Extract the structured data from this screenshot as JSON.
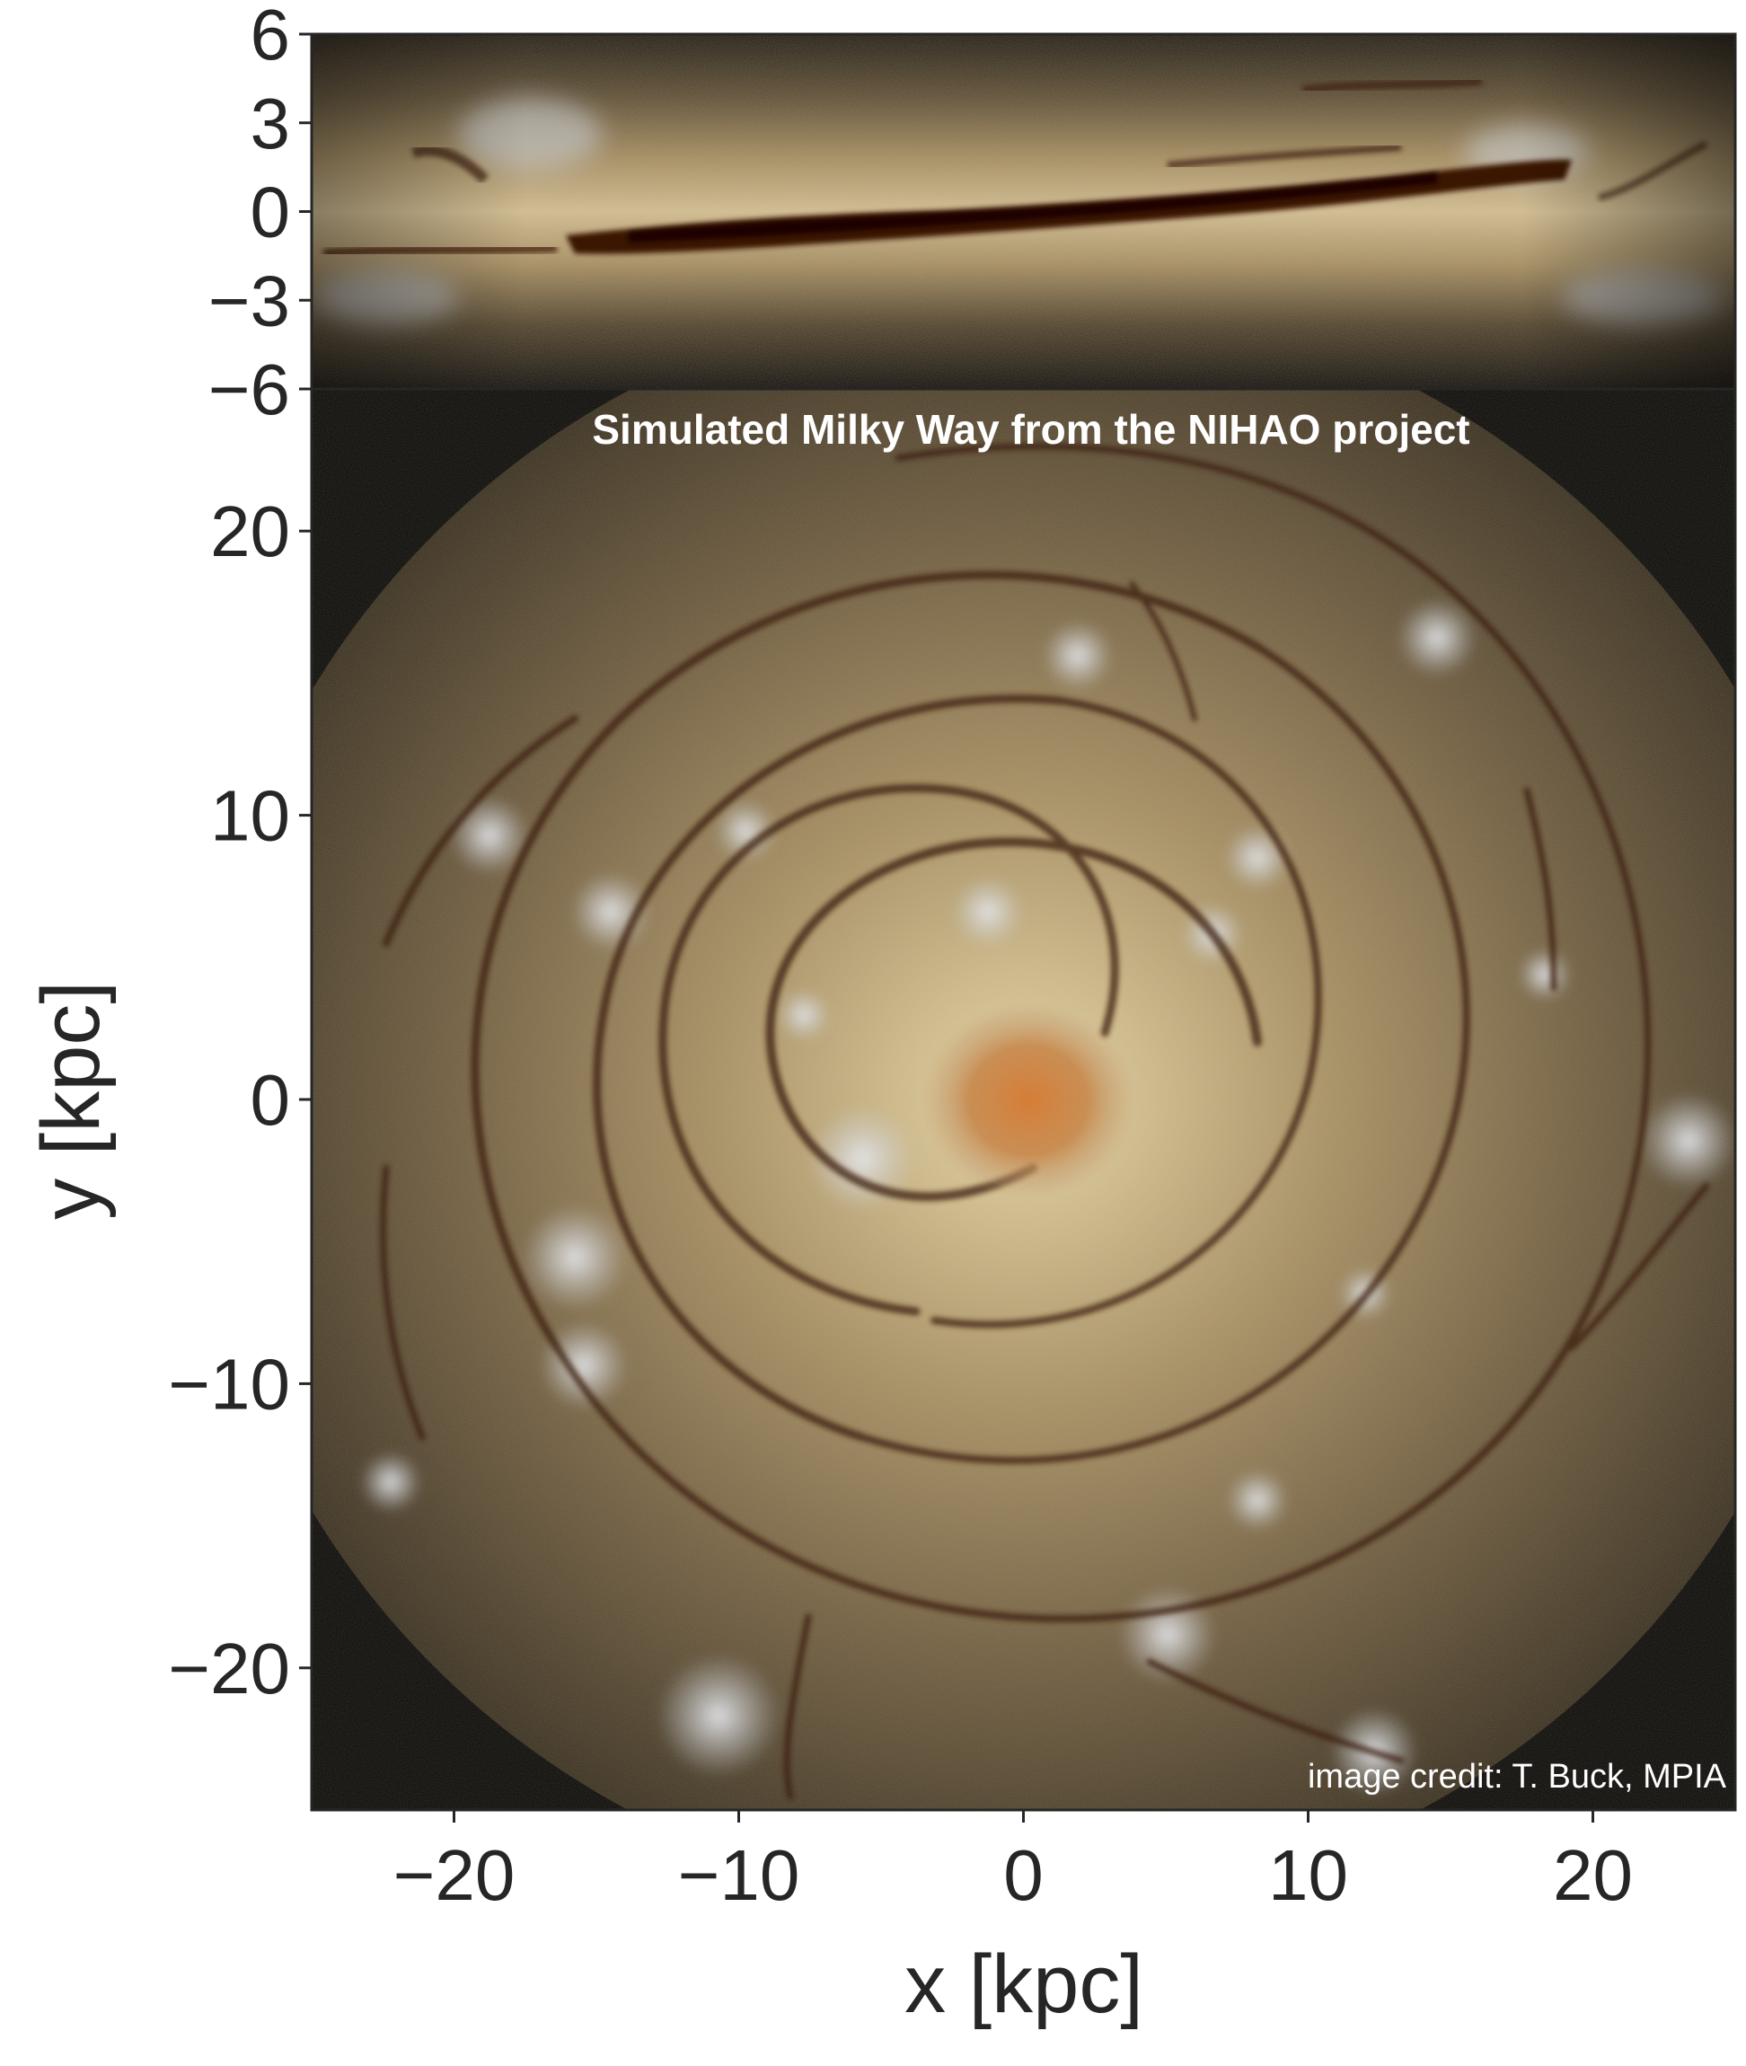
{
  "title": "Simulated Milky Way from the NIHAO project",
  "credit": "image credit: T. Buck, MPIA",
  "edge_on_panel": {
    "ylim": [
      -6,
      6
    ],
    "yticks": [
      "6",
      "3",
      "0",
      "−3",
      "−6"
    ],
    "ytick_values": [
      6,
      3,
      0,
      -3,
      -6
    ]
  },
  "face_on_panel": {
    "xlim": [
      -25,
      25
    ],
    "ylim": [
      -25,
      25
    ],
    "xlabel": "x [kpc]",
    "ylabel": "y [kpc]",
    "xticks": [
      "−20",
      "−10",
      "0",
      "10",
      "20"
    ],
    "xtick_values": [
      -20,
      -10,
      0,
      10,
      20
    ],
    "yticks": [
      "20",
      "10",
      "0",
      "−10",
      "−20"
    ],
    "ytick_values": [
      20,
      10,
      0,
      -10,
      -20
    ]
  },
  "colors": {
    "background": "#000000",
    "disk_light": "#d8c7a0",
    "disk_mid": "#8a7452",
    "core": "#c8742e",
    "dust": "#3a1a0a",
    "star_clusters": "#c9cdd2",
    "axis": "#262626"
  }
}
